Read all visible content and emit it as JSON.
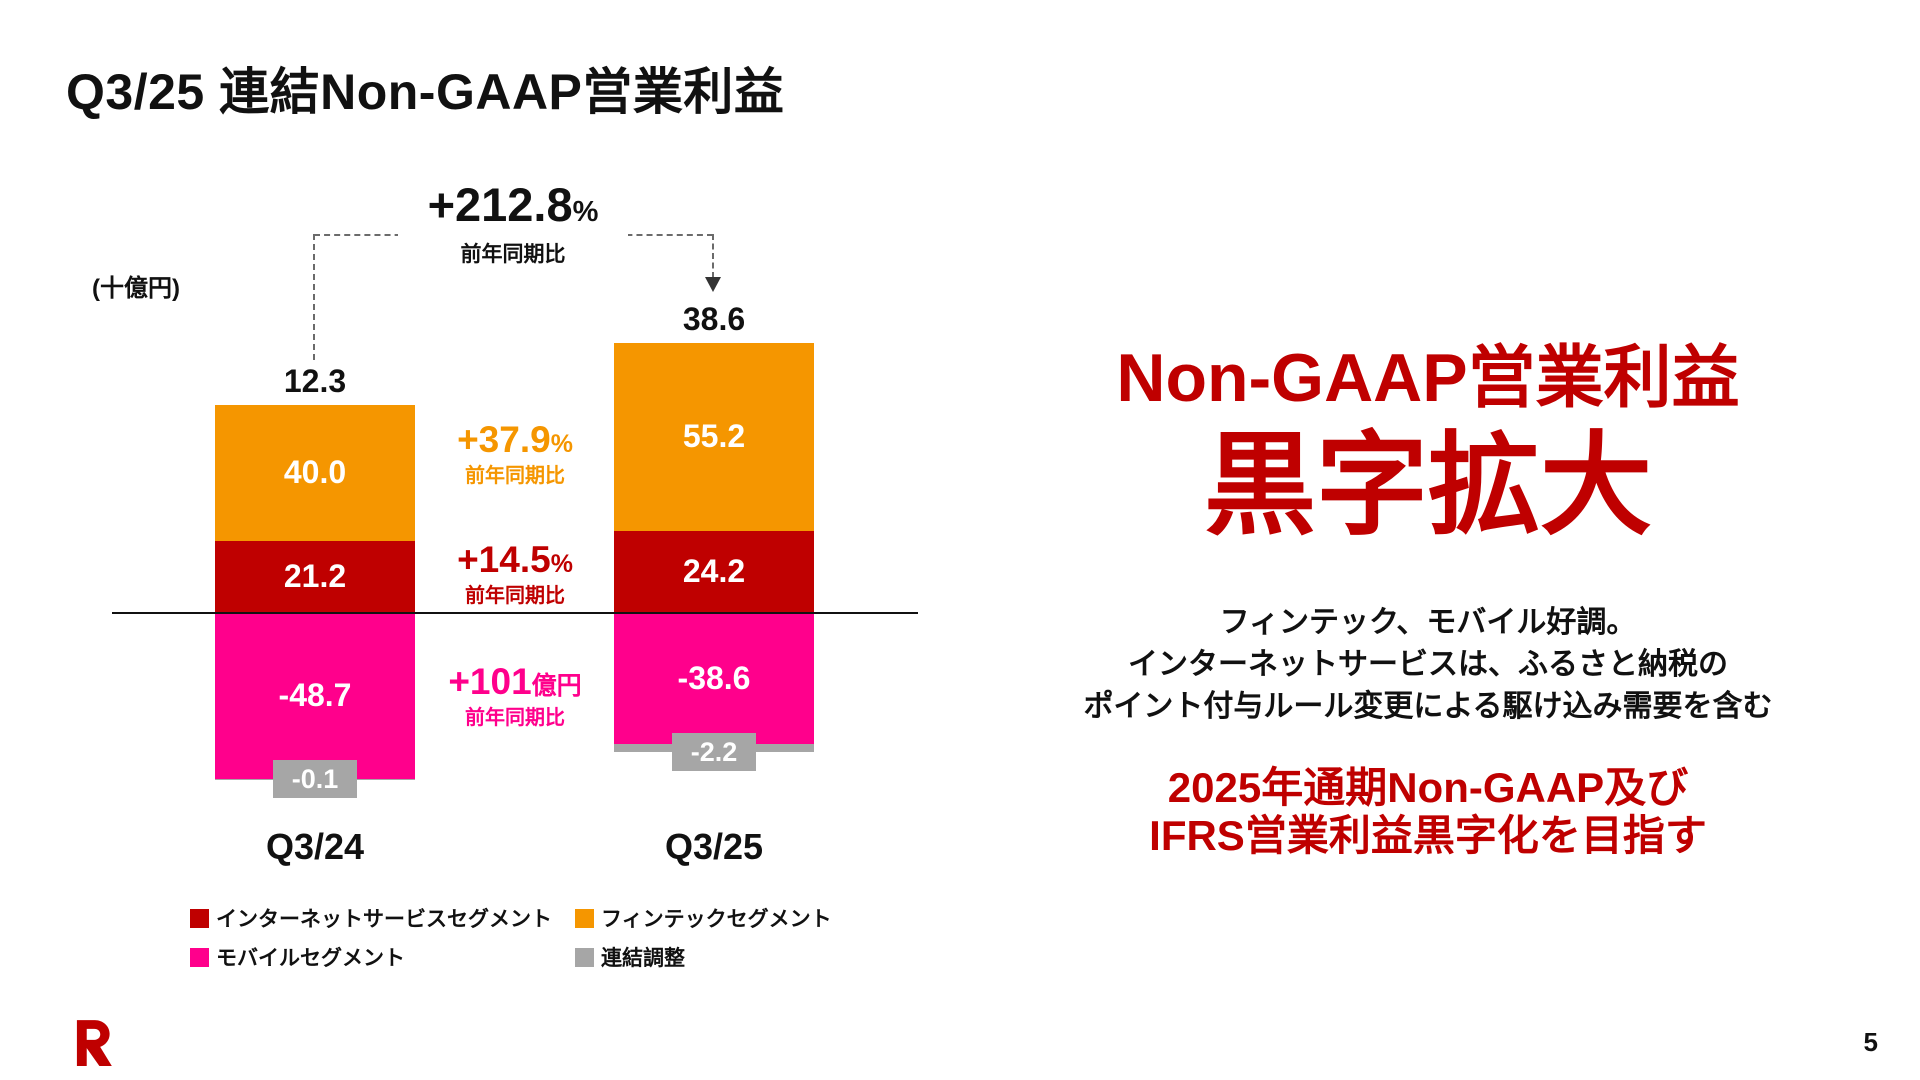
{
  "title": "Q3/25 連結Non-GAAP営業利益",
  "page_number": "5",
  "colors": {
    "crimson": "#BF0000",
    "orange": "#F59600",
    "pink": "#FF008C",
    "gray": "#A6A6A6"
  },
  "chart_data": {
    "type": "bar",
    "stacked": true,
    "unit_label": "(十億円)",
    "categories": [
      "Q3/24",
      "Q3/25"
    ],
    "totals": [
      12.3,
      38.6
    ],
    "series": [
      {
        "name": "インターネットサービスセグメント",
        "color_key": "crimson",
        "values": [
          21.2,
          24.2
        ]
      },
      {
        "name": "フィンテックセグメント",
        "color_key": "orange",
        "values": [
          40.0,
          55.2
        ]
      },
      {
        "name": "モバイルセグメント",
        "color_key": "pink",
        "values": [
          -48.7,
          -38.6
        ]
      },
      {
        "name": "連結調整",
        "color_key": "gray",
        "values": [
          -0.1,
          -2.2
        ]
      }
    ],
    "total_growth": {
      "value": "+212.8",
      "unit": "%",
      "note": "前年同期比"
    },
    "segment_growth": [
      {
        "value": "+37.9",
        "unit": "%",
        "note": "前年同期比",
        "color_key": "orange"
      },
      {
        "value": "+14.5",
        "unit": "%",
        "note": "前年同期比",
        "color_key": "crimson"
      },
      {
        "value": "+101",
        "unit": "億円",
        "note": "前年同期比",
        "color_key": "pink"
      }
    ],
    "ylabel": "",
    "grid": false,
    "legend_position": "bottom"
  },
  "right_panel": {
    "headline_1": "Non-GAAP営業利益",
    "headline_2": "黒字拡大",
    "body_lines": [
      "フィンテック、モバイル好調。",
      "インターネットサービスは、ふるさと納税の",
      "ポイント付与ルール変更による駆け込み需要を含む"
    ],
    "goal_lines": [
      "2025年通期Non-GAAP及び",
      "IFRS営業利益黒字化を目指す"
    ]
  }
}
